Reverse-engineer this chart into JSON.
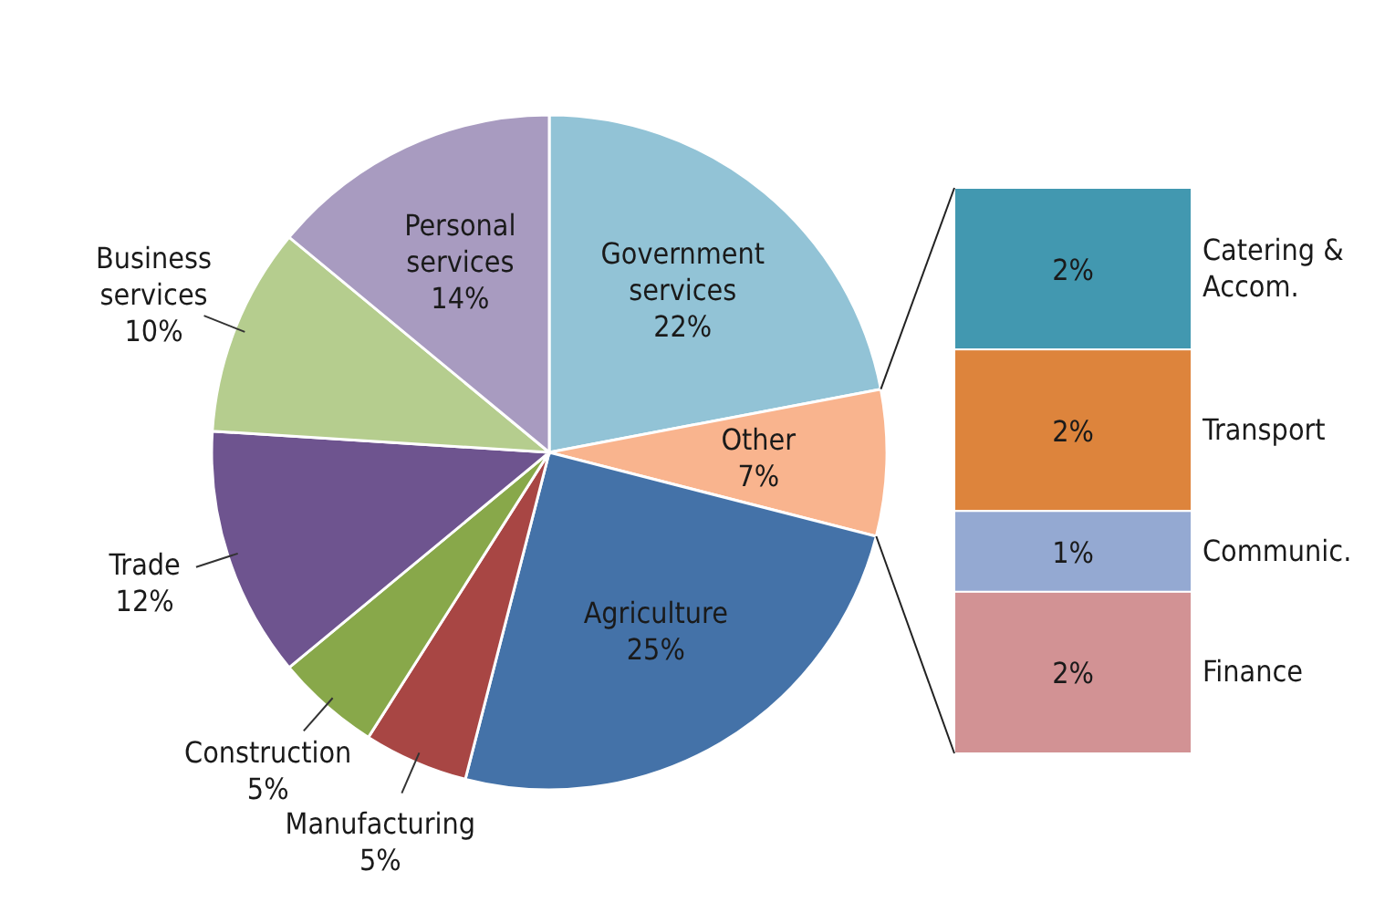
{
  "chart_data": [
    {
      "type": "pie",
      "categories": [
        "Government services",
        "Other",
        "Agriculture",
        "Manufacturing",
        "Construction",
        "Trade",
        "Business services",
        "Personal services"
      ],
      "values": [
        22,
        7,
        25,
        5,
        5,
        12,
        10,
        14
      ],
      "value_labels": [
        "22%",
        "7%",
        "25%",
        "5%",
        "5%",
        "12%",
        "10%",
        "14%"
      ],
      "colors": [
        "#92c3d6",
        "#f9b48e",
        "#4472a8",
        "#a84644",
        "#88a84a",
        "#6e548f",
        "#b5cd8e",
        "#a89bc0"
      ]
    },
    {
      "type": "bar",
      "stacked": true,
      "categories": [
        null
      ],
      "series": [
        {
          "name": "Catering & Accom.",
          "color": "#4298b0",
          "values": [
            2
          ],
          "value_labels": [
            "2%"
          ]
        },
        {
          "name": "Transport",
          "color": "#dd843c",
          "values": [
            2
          ],
          "value_labels": [
            "2%"
          ]
        },
        {
          "name": "Communic.",
          "color": "#94a9d2",
          "values": [
            1
          ],
          "value_labels": [
            "1%"
          ]
        },
        {
          "name": "Finance",
          "color": "#d29294",
          "values": [
            2
          ],
          "value_labels": [
            "2%"
          ]
        }
      ]
    }
  ]
}
